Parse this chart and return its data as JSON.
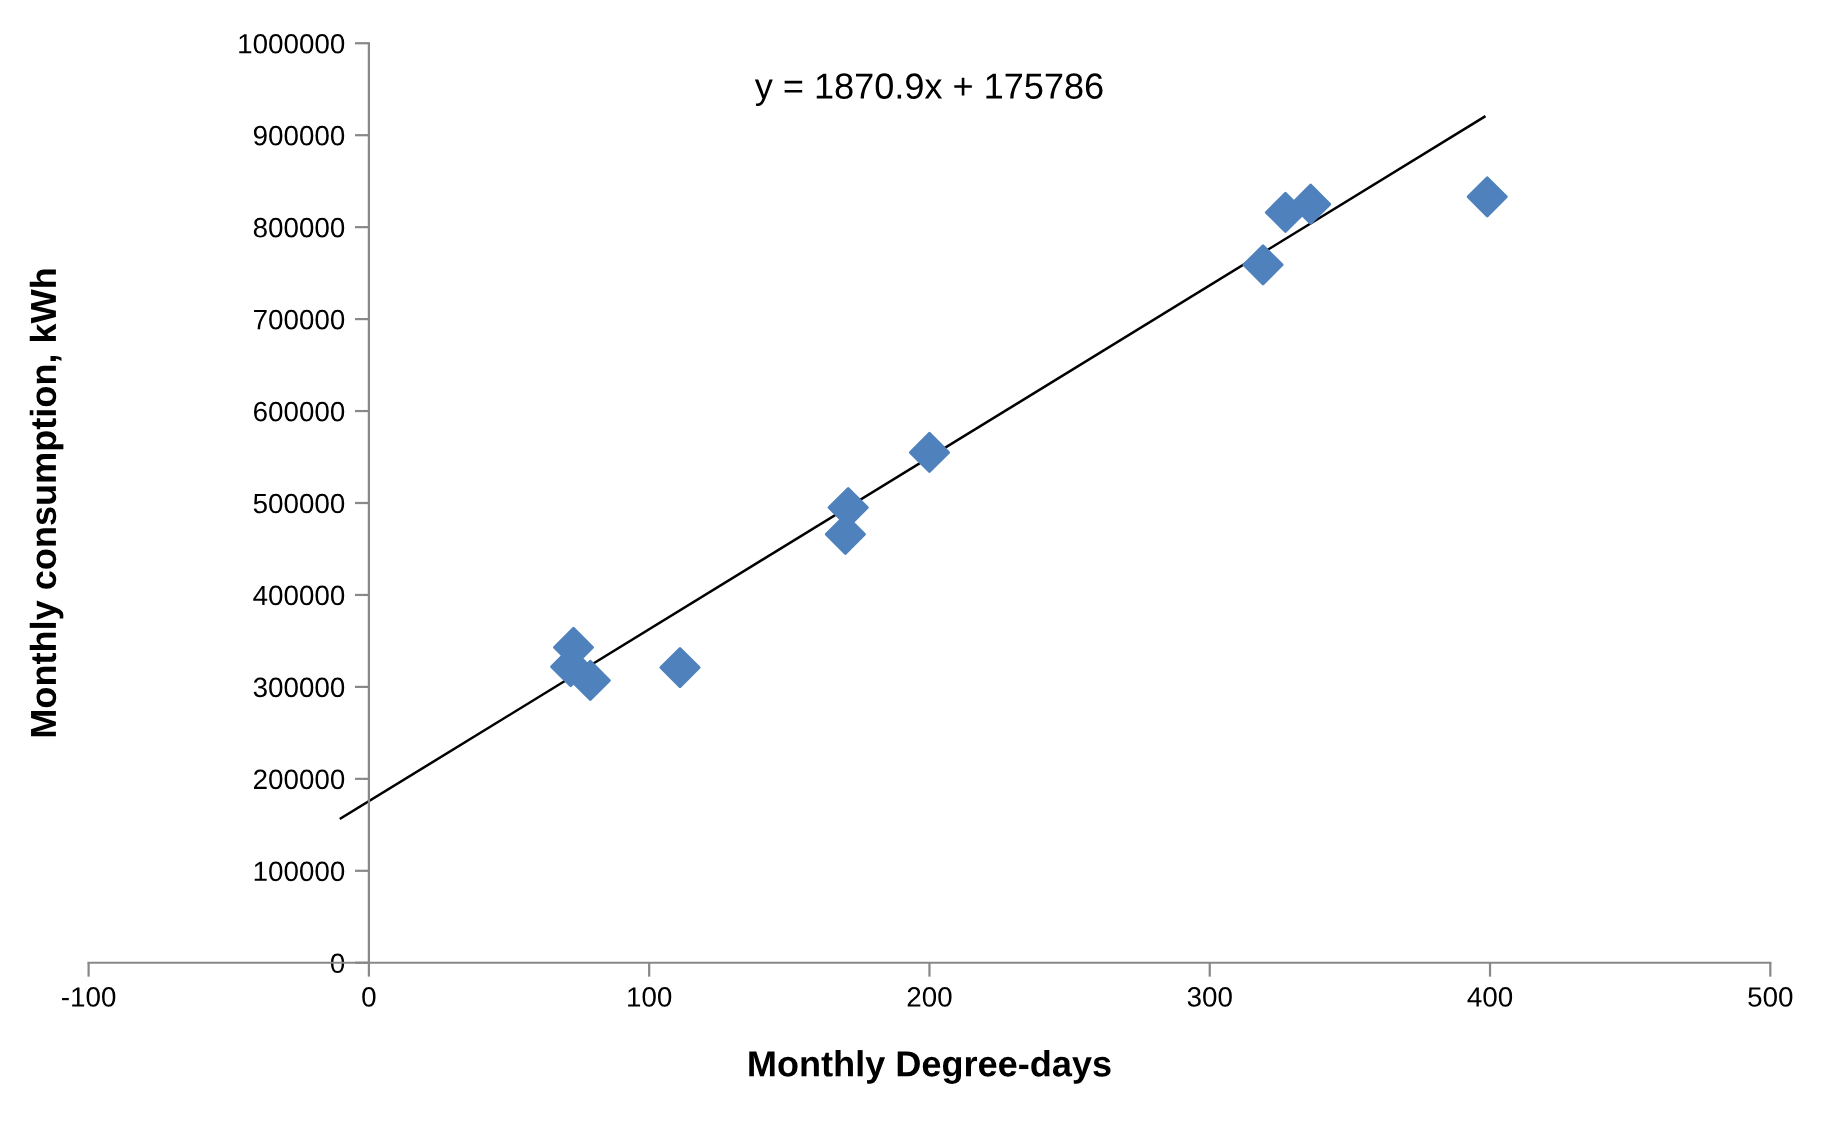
{
  "chart_data": {
    "type": "scatter",
    "xlabel": "Monthly Degree-days",
    "ylabel": "Monthly consumption, kWh",
    "annotations": [
      "y = 1870.9x + 175786"
    ],
    "xlim": [
      -100,
      500
    ],
    "xticks": [
      -100,
      0,
      100,
      200,
      300,
      400,
      500
    ],
    "ylim": [
      0,
      1000000
    ],
    "yticks": [
      0,
      100000,
      200000,
      300000,
      400000,
      500000,
      600000,
      700000,
      800000,
      900000,
      1000000
    ],
    "grid": false,
    "legend": false,
    "marker": "diamond",
    "series": [
      {
        "color": "#4f81bd",
        "x": [
          73,
          72,
          79,
          111,
          171,
          170,
          200,
          319,
          327,
          336,
          399
        ],
        "values": [
          343000,
          322000,
          307000,
          321000,
          495000,
          466000,
          555000,
          759000,
          816000,
          825000,
          833000
        ]
      },
      {
        "type": "line",
        "color": "#000000",
        "marker": "none",
        "x": [
          -10,
          398
        ],
        "values": [
          157000,
          920000
        ]
      }
    ]
  }
}
